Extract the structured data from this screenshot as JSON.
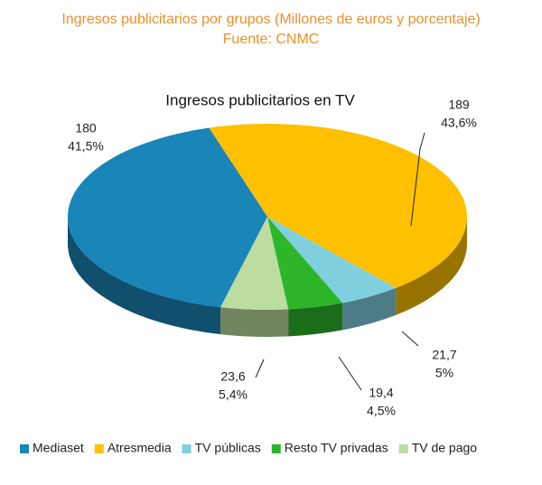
{
  "chart_data": {
    "type": "pie3d",
    "title": "Ingresos publicitarios por grupos (Millones de euros y porcentaje)",
    "subtitle": "Fuente: CNMC",
    "chart_title": "Ingresos publicitarios en TV",
    "categories": [
      "Mediaset",
      "Atresmedia",
      "TV públicas",
      "Resto TV privadas",
      "TV de pago"
    ],
    "values": [
      180,
      189,
      21.7,
      19.4,
      23.6
    ],
    "value_labels": [
      "180",
      "189",
      "21,7",
      "19,4",
      "23,6"
    ],
    "percent_labels": [
      "41,5%",
      "43,6%",
      "5%",
      "4,5%",
      "5,4%"
    ],
    "colors": [
      "#1a86b8",
      "#ffc000",
      "#80cfdf",
      "#2db52a",
      "#bcdca0"
    ],
    "legend": "bottom"
  }
}
